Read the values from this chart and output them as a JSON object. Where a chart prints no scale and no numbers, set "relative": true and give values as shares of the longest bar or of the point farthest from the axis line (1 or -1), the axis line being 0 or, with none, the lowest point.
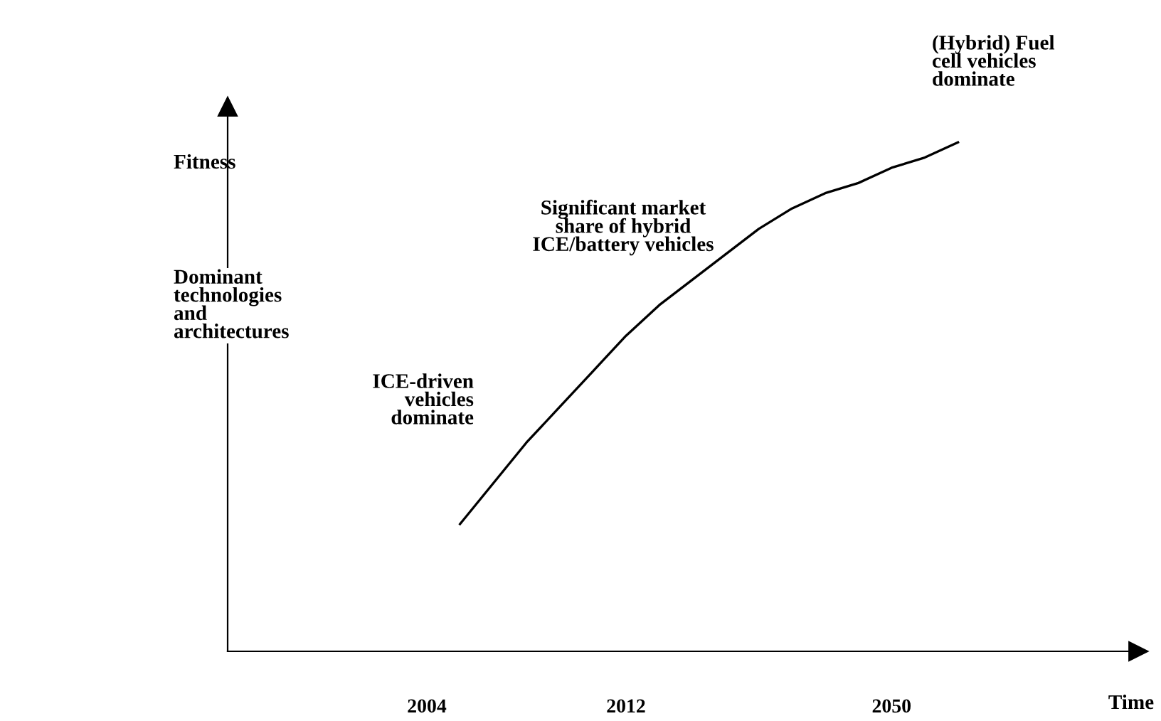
{
  "chart_data": {
    "type": "line",
    "relative": true,
    "xlabel": "Time",
    "ylabel": "Fitness",
    "color": "#000000",
    "categories": [
      null,
      null,
      null,
      null,
      null,
      null,
      "2004",
      null,
      null,
      null,
      null,
      null,
      "2012",
      null,
      null,
      null,
      null,
      null,
      null,
      null,
      "2050",
      null,
      null,
      null,
      null,
      null,
      null,
      null
    ],
    "values": [
      null,
      null,
      null,
      null,
      null,
      null,
      null,
      0.25,
      0.33,
      0.41,
      0.48,
      0.55,
      0.62,
      0.68,
      0.73,
      0.78,
      0.83,
      0.87,
      0.9,
      0.92,
      0.95,
      0.97,
      1,
      null,
      null,
      null,
      null,
      null
    ],
    "annotations": [
      "Dominant\ntechnologies\nand\narchitectures",
      "ICE-driven\nvehicles\ndominate",
      "Significant market\nshare of hybrid\nICE/battery vehicles",
      "(Hybrid) Fuel\ncell vehicles\ndominate"
    ],
    "grid": false,
    "marker": "none",
    "line_style": "solid"
  }
}
